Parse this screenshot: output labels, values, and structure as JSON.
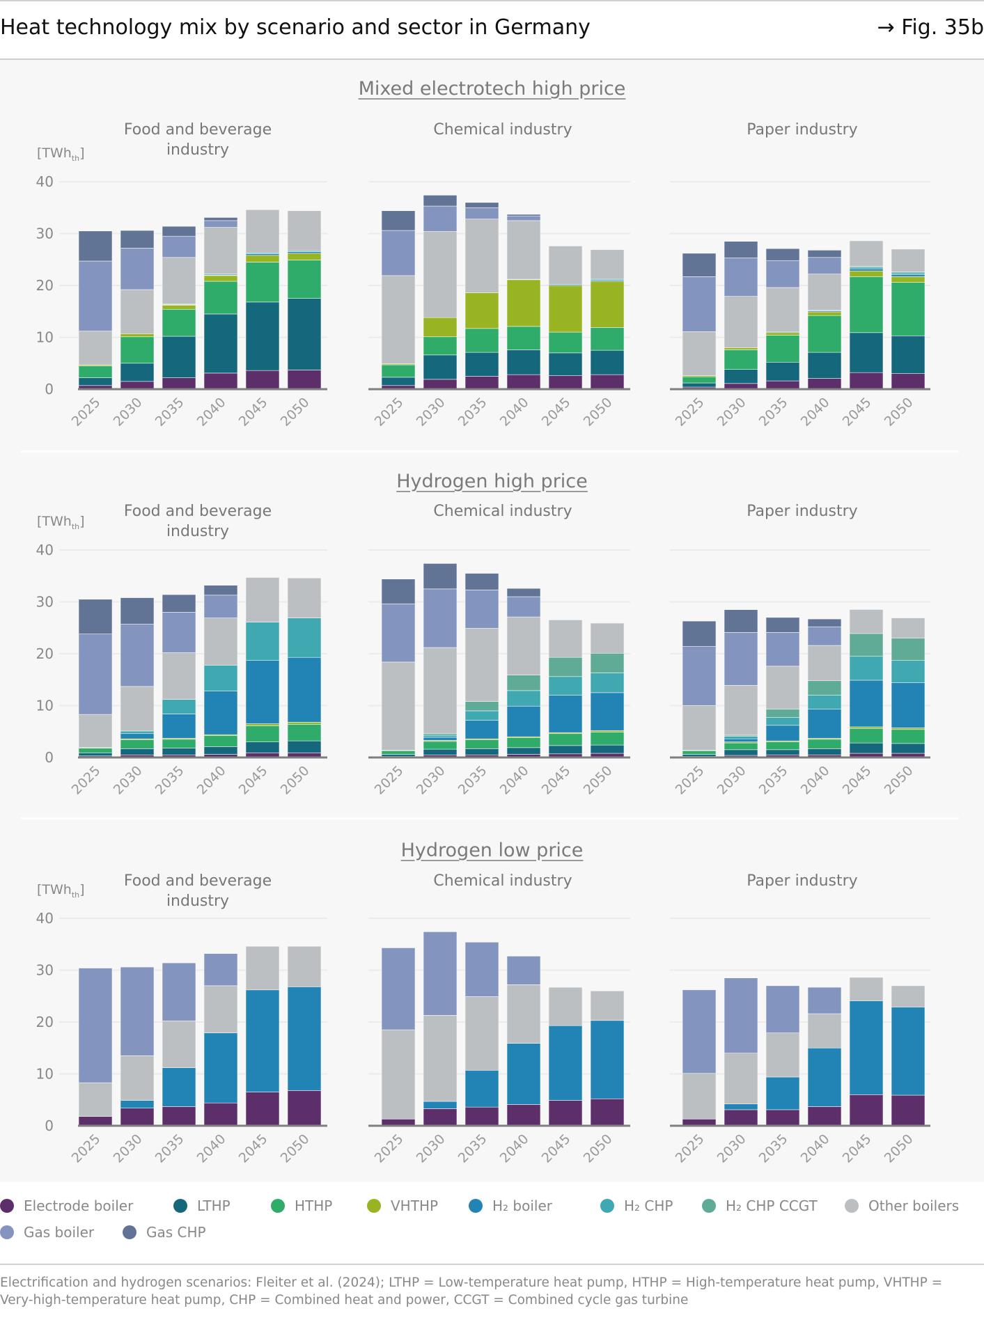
{
  "header": {
    "title": "Heat technology mix by scenario and sector in Germany",
    "figure_ref": "→ Fig. 35b"
  },
  "unit": {
    "main": "[TWh",
    "sub": "th",
    "close": "]"
  },
  "legend": [
    {
      "name": "Electrode boiler",
      "color": "#5c2f6b"
    },
    {
      "name": "LTHP",
      "color": "#15687c"
    },
    {
      "name": "HTHP",
      "color": "#2fac69"
    },
    {
      "name": "VHTHP",
      "color": "#99b422"
    },
    {
      "name": "H₂ boiler",
      "color": "#2283b5"
    },
    {
      "name": "H₂ CHP",
      "color": "#40a8b0"
    },
    {
      "name": "H₂ CHP CCGT",
      "color": "#60ab96"
    },
    {
      "name": "Other boilers",
      "color": "#bbbfc1"
    },
    {
      "name": "Gas boiler",
      "color": "#8394bf"
    },
    {
      "name": "Gas CHP",
      "color": "#627495"
    }
  ],
  "footer": "Electrification and hydrogen scenarios: Fleiter et al. (2024); LTHP = Low-temperature heat pump, HTHP = High-temperature heat pump, VHTHP = Very-high-temperature heat pump, CHP = Combined heat and power, CCGT = Combined cycle gas turbine",
  "chart_data": {
    "type": "bar",
    "stacked": true,
    "categories": [
      "2025",
      "2030",
      "2035",
      "2040",
      "2045",
      "2050"
    ],
    "ylim": [
      0,
      40
    ],
    "yticks": [
      "0",
      "10",
      "20",
      "30",
      "40"
    ],
    "grid": true,
    "legend_position": "bottom",
    "series_order": [
      "Electrode boiler",
      "LTHP",
      "HTHP",
      "VHTHP",
      "H₂ boiler",
      "H₂ CHP",
      "H₂ CHP CCGT",
      "Other boilers",
      "Gas boiler",
      "Gas CHP"
    ],
    "scenarios": [
      {
        "title": "Mixed electrotech high price",
        "sectors": [
          {
            "title": "Food and beverage industry",
            "values": [
              [
                0.7,
                1.5,
                2.2,
                3.1,
                3.6,
                3.7
              ],
              [
                1.5,
                3.5,
                8.0,
                11.4,
                13.2,
                13.8
              ],
              [
                2.3,
                5.1,
                5.2,
                6.3,
                7.7,
                7.4
              ],
              [
                0.2,
                0.6,
                0.8,
                1.1,
                1.3,
                1.3
              ],
              [
                0,
                0,
                0.1,
                0.1,
                0.3,
                0.3
              ],
              [
                0,
                0,
                0.1,
                0.2,
                0.2,
                0.2
              ],
              [
                0,
                0,
                0,
                0,
                0,
                0
              ],
              [
                6.5,
                8.5,
                9.0,
                9.0,
                8.3,
                7.7
              ],
              [
                13.5,
                8.0,
                4.1,
                1.3,
                0,
                0
              ],
              [
                5.8,
                3.4,
                1.9,
                0.6,
                0,
                0
              ]
            ]
          },
          {
            "title": "Chemical industry",
            "values": [
              [
                0.7,
                1.9,
                2.5,
                2.8,
                2.6,
                2.8
              ],
              [
                1.6,
                4.7,
                4.6,
                4.8,
                4.4,
                4.7
              ],
              [
                2.4,
                3.5,
                4.6,
                4.5,
                4.0,
                4.4
              ],
              [
                0.2,
                3.7,
                6.9,
                9.0,
                9.0,
                8.9
              ],
              [
                0,
                0,
                0,
                0.1,
                0.2,
                0.2
              ],
              [
                0,
                0,
                0,
                0,
                0,
                0.2
              ],
              [
                0,
                0,
                0,
                0,
                0,
                0
              ],
              [
                17.0,
                16.6,
                14.2,
                11.3,
                7.4,
                5.7
              ],
              [
                8.7,
                4.9,
                2.2,
                0.9,
                0,
                0
              ],
              [
                3.8,
                2.1,
                1.0,
                0.3,
                0,
                0
              ]
            ]
          },
          {
            "title": "Paper industry",
            "values": [
              [
                0.4,
                1.1,
                1.6,
                2.1,
                3.2,
                3.0
              ],
              [
                0.8,
                2.7,
                3.6,
                5.0,
                7.7,
                7.3
              ],
              [
                1.2,
                3.8,
                5.2,
                7.1,
                10.8,
                10.3
              ],
              [
                0.2,
                0.4,
                0.5,
                0.7,
                1.1,
                1.1
              ],
              [
                0,
                0,
                0,
                0.2,
                0.4,
                0.4
              ],
              [
                0,
                0,
                0,
                0.1,
                0.3,
                0.3
              ],
              [
                0,
                0,
                0.2,
                0,
                0.2,
                0.2
              ],
              [
                8.5,
                9.9,
                8.5,
                7.0,
                4.9,
                4.4
              ],
              [
                10.6,
                7.4,
                5.2,
                3.2,
                0,
                0
              ],
              [
                4.5,
                3.2,
                2.3,
                1.4,
                0,
                0
              ]
            ]
          }
        ]
      },
      {
        "title": "Hydrogen high price",
        "sectors": [
          {
            "title": "Food and beverage industry",
            "values": [
              [
                0.3,
                0.5,
                0.5,
                0.6,
                0.9,
                0.9
              ],
              [
                0.6,
                1.2,
                1.3,
                1.5,
                2.1,
                2.3
              ],
              [
                0.9,
                1.7,
                1.7,
                2.1,
                3.1,
                3.2
              ],
              [
                0.1,
                0.2,
                0.2,
                0.2,
                0.4,
                0.4
              ],
              [
                0,
                1.0,
                4.7,
                8.4,
                12.2,
                12.5
              ],
              [
                0,
                0.5,
                2.8,
                5.0,
                7.4,
                7.6
              ],
              [
                0,
                0,
                0,
                0,
                0,
                0
              ],
              [
                6.4,
                8.6,
                9.0,
                9.1,
                8.6,
                7.7
              ],
              [
                15.5,
                12.0,
                7.8,
                4.4,
                0,
                0
              ],
              [
                6.7,
                5.1,
                3.4,
                1.9,
                0,
                0
              ]
            ]
          },
          {
            "title": "Chemical industry",
            "values": [
              [
                0.2,
                0.5,
                0.5,
                0.6,
                0.7,
                0.8
              ],
              [
                0.4,
                1.1,
                1.2,
                1.3,
                1.6,
                1.6
              ],
              [
                0.7,
                1.5,
                1.7,
                1.9,
                2.3,
                2.5
              ],
              [
                0.1,
                0.2,
                0.2,
                0.2,
                0.2,
                0.3
              ],
              [
                0,
                0.6,
                3.6,
                5.9,
                7.2,
                7.3
              ],
              [
                0,
                0.4,
                1.8,
                3.0,
                3.6,
                3.8
              ],
              [
                0,
                0.3,
                1.8,
                3.0,
                3.7,
                3.8
              ],
              [
                17.0,
                16.6,
                14.1,
                11.2,
                7.2,
                5.8
              ],
              [
                11.2,
                11.3,
                7.4,
                3.9,
                0.1,
                0
              ],
              [
                4.8,
                4.9,
                3.2,
                1.6,
                0,
                0
              ]
            ]
          },
          {
            "title": "Paper industry",
            "values": [
              [
                0.2,
                0.4,
                0.5,
                0.5,
                0.8,
                0.8
              ],
              [
                0.4,
                1.1,
                1.0,
                1.2,
                2.0,
                1.9
              ],
              [
                0.7,
                1.3,
                1.5,
                1.8,
                2.8,
                2.7
              ],
              [
                0.1,
                0.2,
                0.2,
                0.2,
                0.3,
                0.3
              ],
              [
                0,
                0.6,
                3.0,
                5.6,
                9.0,
                8.7
              ],
              [
                0,
                0.5,
                1.5,
                2.7,
                4.6,
                4.3
              ],
              [
                0,
                0.2,
                1.6,
                2.8,
                4.4,
                4.3
              ],
              [
                8.6,
                9.6,
                8.3,
                6.8,
                4.6,
                3.9
              ],
              [
                11.4,
                10.2,
                6.5,
                3.6,
                0.1,
                0
              ],
              [
                4.9,
                4.4,
                2.9,
                1.5,
                0,
                0
              ]
            ]
          }
        ]
      },
      {
        "title": "Hydrogen low price",
        "sectors": [
          {
            "title": "Food and beverage industry",
            "values": [
              [
                1.8,
                3.4,
                3.7,
                4.4,
                6.5,
                6.8
              ],
              [
                0,
                0,
                0,
                0,
                0,
                0
              ],
              [
                0,
                0,
                0,
                0,
                0,
                0
              ],
              [
                0,
                0,
                0,
                0,
                0,
                0
              ],
              [
                0,
                1.5,
                7.5,
                13.5,
                19.7,
                20.0
              ],
              [
                0,
                0,
                0,
                0,
                0,
                0
              ],
              [
                0,
                0,
                0,
                0,
                0,
                0
              ],
              [
                6.5,
                8.6,
                9.0,
                9.1,
                8.4,
                7.8
              ],
              [
                22.1,
                17.1,
                11.2,
                6.2,
                0,
                0
              ],
              [
                0,
                0,
                0,
                0,
                0,
                0
              ]
            ]
          },
          {
            "title": "Chemical industry",
            "values": [
              [
                1.3,
                3.3,
                3.6,
                4.1,
                4.9,
                5.2
              ],
              [
                0,
                0,
                0,
                0,
                0,
                0
              ],
              [
                0,
                0,
                0,
                0,
                0,
                0
              ],
              [
                0,
                0,
                0,
                0,
                0,
                0
              ],
              [
                0,
                1.4,
                7.1,
                11.8,
                14.4,
                15.1
              ],
              [
                0,
                0,
                0,
                0,
                0,
                0
              ],
              [
                0,
                0,
                0,
                0,
                0,
                0
              ],
              [
                17.2,
                16.6,
                14.2,
                11.3,
                7.4,
                5.7
              ],
              [
                15.8,
                16.1,
                10.5,
                5.5,
                0,
                0
              ],
              [
                0,
                0,
                0,
                0,
                0,
                0
              ]
            ]
          },
          {
            "title": "Paper industry",
            "values": [
              [
                1.3,
                3.1,
                3.1,
                3.7,
                6.0,
                5.9
              ],
              [
                0,
                0,
                0,
                0,
                0,
                0
              ],
              [
                0,
                0,
                0,
                0,
                0,
                0
              ],
              [
                0,
                0,
                0,
                0,
                0,
                0
              ],
              [
                0,
                1.1,
                6.3,
                11.3,
                18.1,
                17.0
              ],
              [
                0,
                0,
                0,
                0,
                0,
                0
              ],
              [
                0,
                0,
                0,
                0,
                0,
                0
              ],
              [
                8.8,
                9.8,
                8.5,
                6.6,
                4.5,
                4.1
              ],
              [
                16.1,
                14.5,
                9.1,
                5.1,
                0,
                0
              ],
              [
                0,
                0,
                0,
                0,
                0,
                0
              ]
            ]
          }
        ]
      }
    ]
  }
}
